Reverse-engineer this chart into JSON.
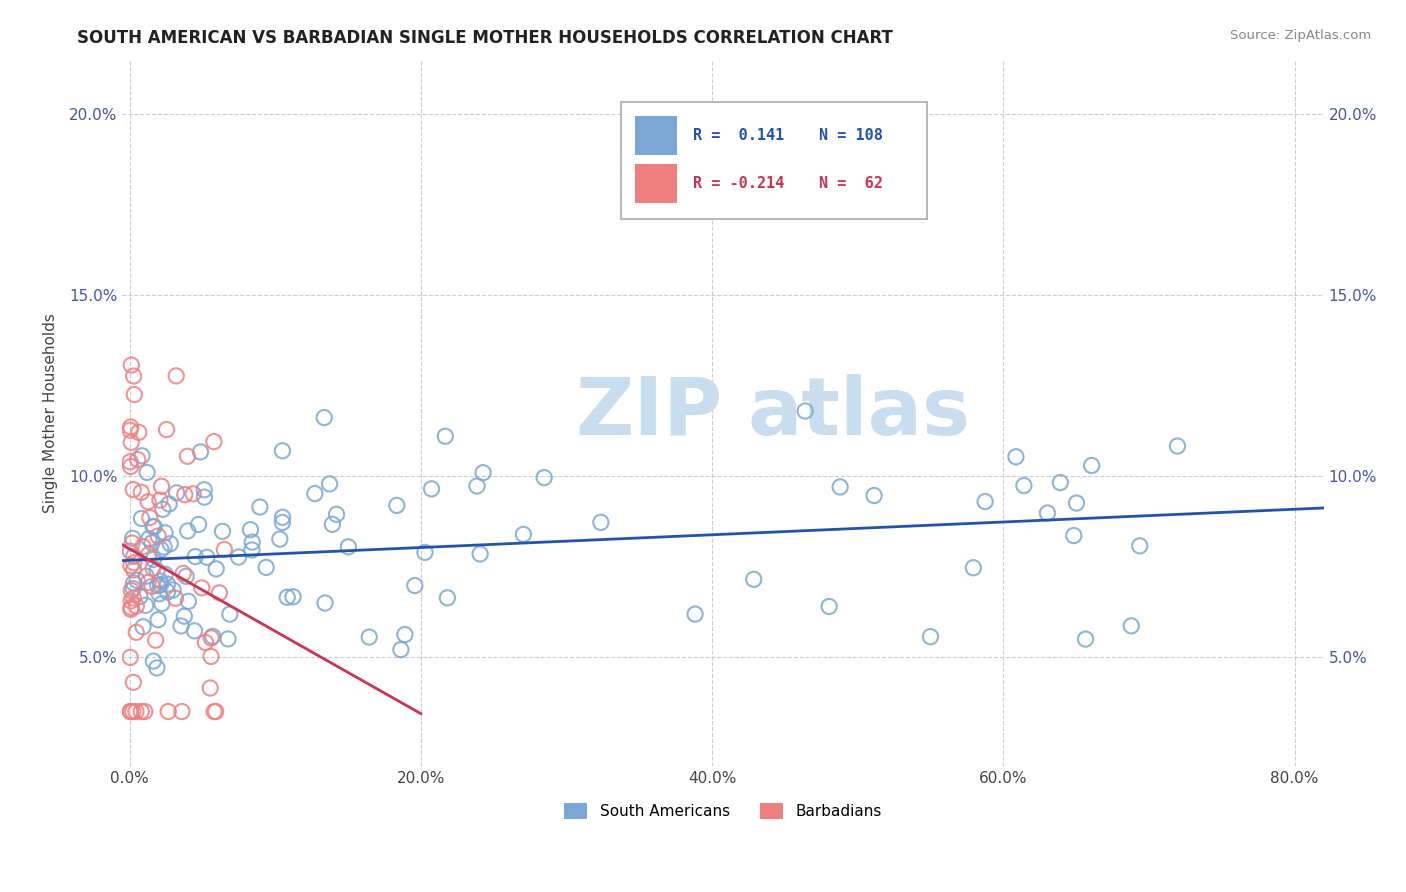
{
  "title": "SOUTH AMERICAN VS BARBADIAN SINGLE MOTHER HOUSEHOLDS CORRELATION CHART",
  "source": "Source: ZipAtlas.com",
  "ylabel": "Single Mother Households",
  "xlim": [
    -0.005,
    0.82
  ],
  "ylim": [
    0.02,
    0.215
  ],
  "south_american_color": "#7AA7D4",
  "barbadian_color": "#F08080",
  "trend_sa_color": "#2255AA",
  "trend_bar_color": "#CC3355",
  "background_color": "#FFFFFF",
  "grid_color": "#CCCCCC",
  "ytick_color": "#4455AA",
  "xtick_positions": [
    0.0,
    0.2,
    0.4,
    0.6,
    0.8
  ],
  "xtick_labels": [
    "0.0%",
    "20.0%",
    "40.0%",
    "60.0%",
    "80.0%"
  ],
  "ytick_positions": [
    0.05,
    0.1,
    0.15,
    0.2
  ],
  "ytick_labels": [
    "5.0%",
    "10.0%",
    "15.0%",
    "20.0%"
  ],
  "legend_r1": "0.141",
  "legend_n1": "108",
  "legend_r2": "-0.214",
  "legend_n2": "62"
}
